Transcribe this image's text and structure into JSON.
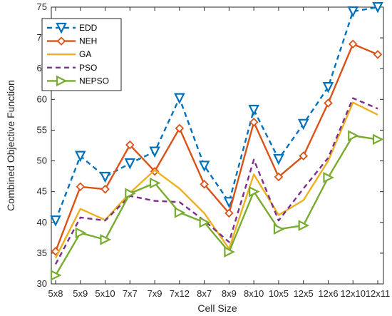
{
  "chart_data": {
    "type": "line",
    "title": "",
    "xlabel": "Cell Size",
    "ylabel": "Combined Objective Function",
    "categories": [
      "5x8",
      "5x9",
      "5x10",
      "7x7",
      "7x9",
      "7x12",
      "8x7",
      "8x9",
      "8x10",
      "10x5",
      "12x5",
      "12x6",
      "12x10",
      "12x11"
    ],
    "ylim": [
      30,
      75
    ],
    "yticks": [
      30,
      35,
      40,
      45,
      50,
      55,
      60,
      65,
      70,
      75
    ],
    "grid": false,
    "legend_position": "top-left",
    "series": [
      {
        "name": "EDD",
        "color": "#0072BD",
        "dash": "dashed",
        "marker": "triangle-down",
        "values": [
          40.3,
          50.8,
          47.4,
          49.6,
          51.5,
          60.2,
          49.2,
          43.3,
          58.3,
          50.3,
          56.0,
          62.0,
          74.3,
          75.0
        ]
      },
      {
        "name": "NEH",
        "color": "#D95319",
        "dash": "solid",
        "marker": "diamond",
        "values": [
          35.3,
          45.8,
          45.4,
          52.6,
          48.3,
          55.3,
          46.2,
          41.5,
          56.3,
          47.4,
          50.8,
          59.4,
          69.0,
          67.3
        ]
      },
      {
        "name": "GA",
        "color": "#EDB120",
        "dash": "solid",
        "marker": "none",
        "values": [
          34.2,
          42.2,
          40.4,
          44.8,
          48.5,
          45.5,
          41.5,
          35.7,
          47.8,
          41.2,
          43.6,
          50.0,
          59.5,
          57.5
        ]
      },
      {
        "name": "PSO",
        "color": "#7E2F8E",
        "dash": "dashed",
        "marker": "none",
        "values": [
          33.2,
          40.8,
          40.3,
          44.3,
          43.5,
          43.3,
          40.3,
          36.8,
          50.2,
          40.3,
          45.5,
          50.5,
          60.2,
          58.5
        ]
      },
      {
        "name": "NEPSO",
        "color": "#77AC30",
        "dash": "solid",
        "marker": "triangle-right",
        "values": [
          31.4,
          38.3,
          37.2,
          44.7,
          46.4,
          41.6,
          40.0,
          35.2,
          45.0,
          38.9,
          39.5,
          47.3,
          54.1,
          53.5
        ]
      }
    ]
  }
}
